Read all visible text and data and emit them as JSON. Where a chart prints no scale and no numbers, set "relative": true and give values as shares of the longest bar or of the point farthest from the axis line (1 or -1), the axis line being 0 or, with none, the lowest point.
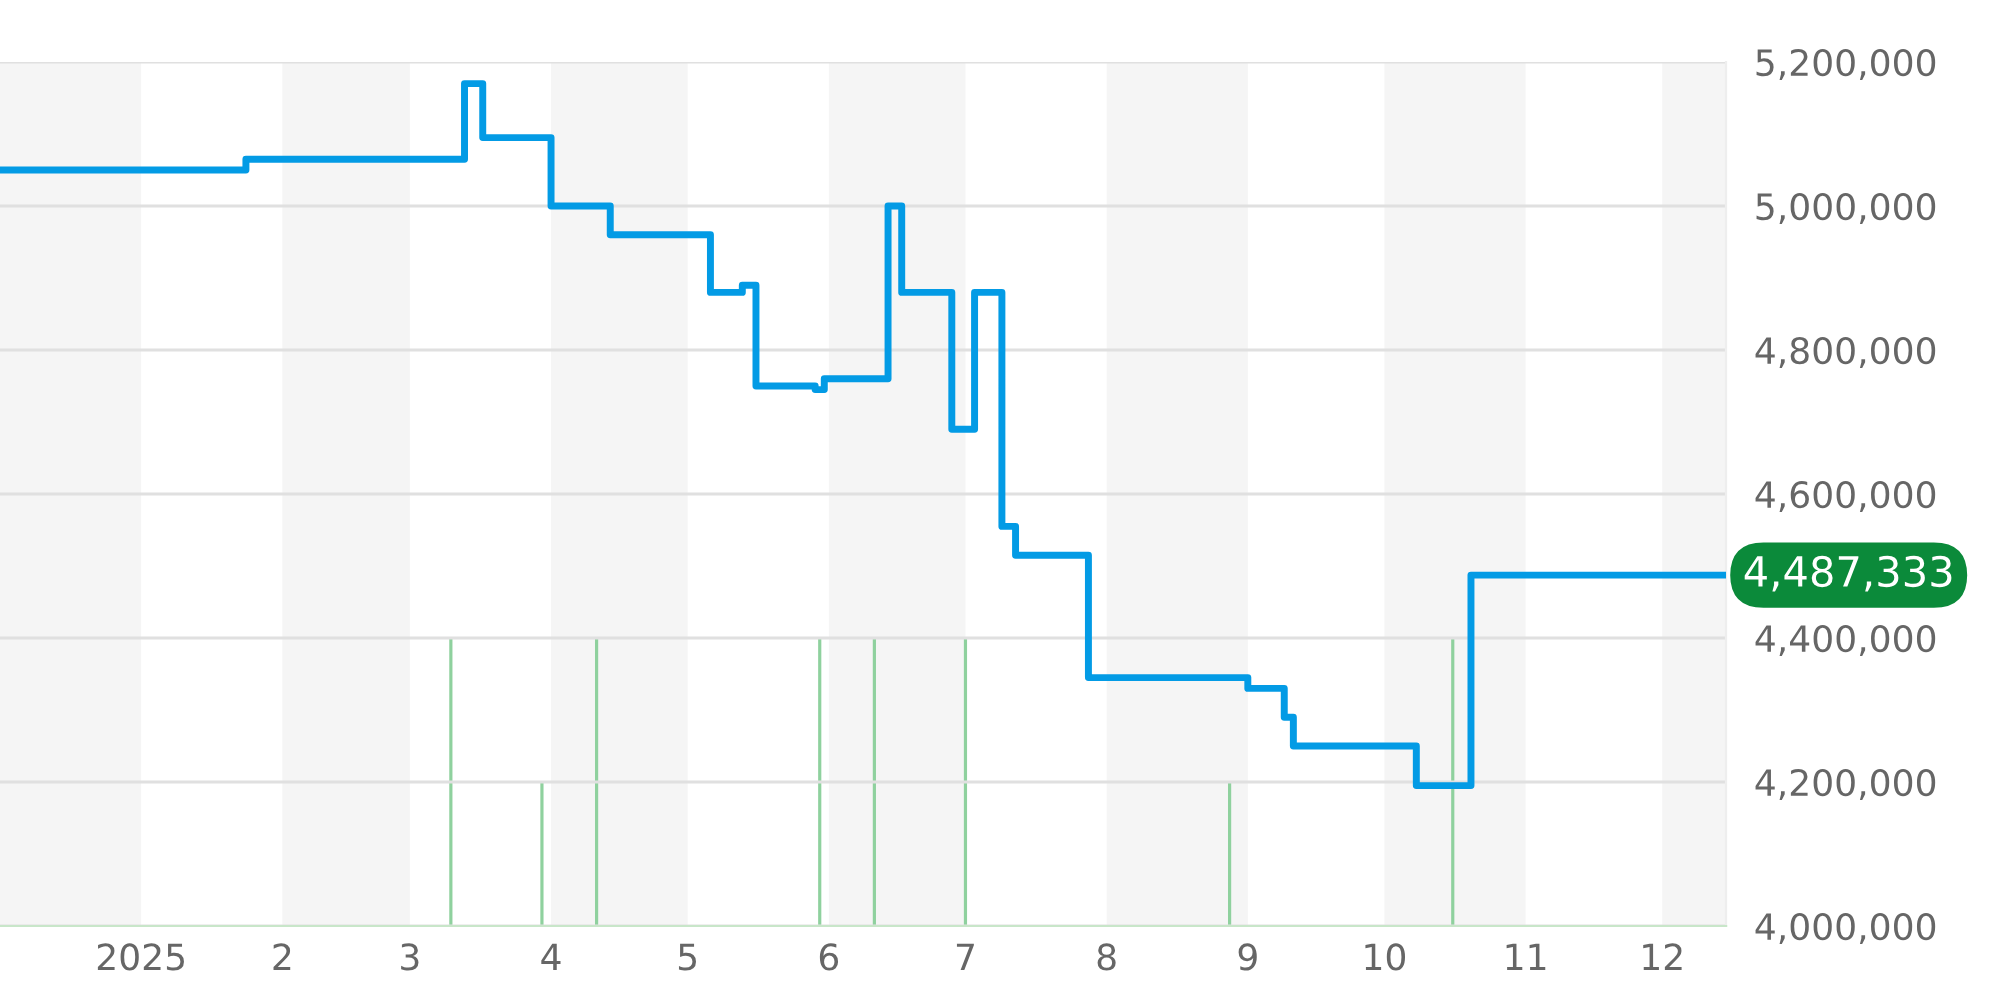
{
  "chart_data": [
    {
      "type": "step",
      "x": [
        "2024-12-01",
        "2025-01-24",
        "2025-03-13",
        "2025-03-17",
        "2025-04-01",
        "2025-04-14",
        "2025-05-06",
        "2025-05-13",
        "2025-05-16",
        "2025-05-29",
        "2025-05-31",
        "2025-06-14",
        "2025-06-17",
        "2025-06-28",
        "2025-07-03",
        "2025-07-09",
        "2025-07-12",
        "2025-07-28",
        "2025-09-01",
        "2025-09-09",
        "2025-09-11",
        "2025-10-08",
        "2025-10-20",
        "2025-12-15"
      ],
      "series": [
        {
          "color": "#039be5",
          "values": [
            5050000,
            5065000,
            5170000,
            5095000,
            5000000,
            4960000,
            4880000,
            4890000,
            4750000,
            4745000,
            4760000,
            5000000,
            4880000,
            4690000,
            4880000,
            4555000,
            4515000,
            4345000,
            4330000,
            4290000,
            4250000,
            4195000,
            4487333,
            4487333
          ]
        }
      ],
      "xlim": [
        "2024-12-01",
        "2025-12-15"
      ],
      "ylim": [
        4000000,
        5200000
      ],
      "yticks": [
        {
          "value": 4000000,
          "label": "4,000,000"
        },
        {
          "value": 4200000,
          "label": "4,200,000"
        },
        {
          "value": 4400000,
          "label": "4,400,000"
        },
        {
          "value": 4600000,
          "label": "4,600,000"
        },
        {
          "value": 4800000,
          "label": "4,800,000"
        },
        {
          "value": 5000000,
          "label": "5,000,000"
        },
        {
          "value": 5200000,
          "label": "5,200,000"
        }
      ],
      "grid": "y",
      "tick_labels": "y",
      "annotations": [
        {
          "text": "4,487,333",
          "x": "2025-12-15",
          "y": 4487333
        }
      ]
    },
    {
      "type": "bar",
      "relative": true,
      "tick_labels": "x",
      "x": [
        "2025-03-10",
        "2025-03-30",
        "2025-04-11",
        "2025-05-30",
        "2025-06-11",
        "2025-07-01",
        "2025-08-28",
        "2025-10-16"
      ],
      "values": [
        1,
        0.5,
        1,
        1,
        1,
        1,
        0.5,
        1
      ],
      "color": "#8fd19e",
      "xlim": [
        "2024-12-01",
        "2025-12-15"
      ],
      "xticks": [
        {
          "value": "2025-01-01",
          "label": "2025"
        },
        {
          "value": "2025-02-01",
          "label": "2"
        },
        {
          "value": "2025-03-01",
          "label": "3"
        },
        {
          "value": "2025-04-01",
          "label": "4"
        },
        {
          "value": "2025-05-01",
          "label": "5"
        },
        {
          "value": "2025-06-01",
          "label": "6"
        },
        {
          "value": "2025-07-01",
          "label": "7"
        },
        {
          "value": "2025-08-01",
          "label": "8"
        },
        {
          "value": "2025-09-01",
          "label": "9"
        },
        {
          "value": "2025-10-01",
          "label": "10"
        },
        {
          "value": "2025-11-01",
          "label": "11"
        },
        {
          "value": "2025-12-01",
          "label": "12"
        }
      ],
      "bands": [
        {
          "axis": "x",
          "from": "2024-12-01",
          "to": "2025-01-01",
          "color": "#f5f5f5"
        },
        {
          "axis": "x",
          "from": "2025-02-01",
          "to": "2025-03-01",
          "color": "#f5f5f5"
        },
        {
          "axis": "x",
          "from": "2025-04-01",
          "to": "2025-05-01",
          "color": "#f5f5f5"
        },
        {
          "axis": "x",
          "from": "2025-06-01",
          "to": "2025-07-01",
          "color": "#f5f5f5"
        },
        {
          "axis": "x",
          "from": "2025-08-01",
          "to": "2025-09-01",
          "color": "#f5f5f5"
        },
        {
          "axis": "x",
          "from": "2025-10-01",
          "to": "2025-11-01",
          "color": "#f5f5f5"
        },
        {
          "axis": "x",
          "from": "2025-12-01",
          "to": "2025-12-15",
          "color": "#f5f5f5"
        }
      ]
    }
  ]
}
